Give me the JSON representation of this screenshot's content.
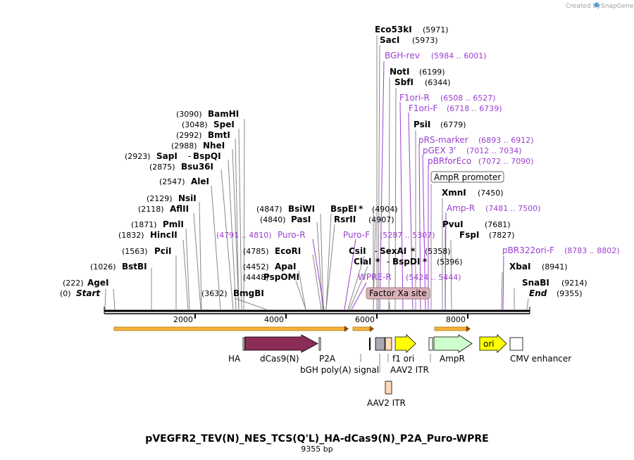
{
  "credit": {
    "created_by": "Created by",
    "brand": "SnapGene"
  },
  "plasmid": {
    "name": "pVEGFR2_TEV(N)_NES_TCS(Q'L)_HA-dCas9(N)_P2A_Puro-WPRE",
    "length": "9355 bp"
  },
  "axis": {
    "ticks": [
      "2000",
      "4000",
      "6000",
      "8000"
    ]
  },
  "enzymes_left": [
    {
      "pos": "(0)",
      "name": "Start",
      "italic": true
    },
    {
      "pos": "(222)",
      "name": "AgeI"
    },
    {
      "pos": "(1026)",
      "name": "BstBI"
    },
    {
      "pos": "(1563)",
      "name": "PciI"
    },
    {
      "pos": "(1832)",
      "name": "HincII"
    },
    {
      "pos": "(1871)",
      "name": "PmlI"
    },
    {
      "pos": "(2118)",
      "name": "AflII"
    },
    {
      "pos": "(2129)",
      "name": "NsiI"
    },
    {
      "pos": "(2547)",
      "name": "AleI"
    },
    {
      "pos": "(2875)",
      "name": "Bsu36I"
    },
    {
      "pos": "(2923)",
      "name": "SapI",
      "extra": "BspQI"
    },
    {
      "pos": "(2988)",
      "name": "NheI"
    },
    {
      "pos": "(2992)",
      "name": "BmtI"
    },
    {
      "pos": "(3048)",
      "name": "SpeI"
    },
    {
      "pos": "(3090)",
      "name": "BamHI"
    }
  ],
  "enzymes_mid": [
    {
      "pos": "(3632)",
      "name": "BmgBI"
    },
    {
      "pos": "(4448)",
      "name": "PspOMI"
    },
    {
      "pos": "(4452)",
      "name": "ApaI"
    },
    {
      "pos": "(4785)",
      "name": "EcoRI"
    },
    {
      "pos": "(4840)",
      "name": "PasI"
    },
    {
      "pos": "(4847)",
      "name": "BsiWI"
    },
    {
      "name": "BspEI",
      "star": "*",
      "pos": "(4904)"
    },
    {
      "name": "RsrII",
      "pos": "(4907)"
    },
    {
      "name": "CsiI",
      "extra": "SexAI",
      "star": "*",
      "pos": "(5358)"
    },
    {
      "name": "ClaI",
      "star": "*",
      "extra": "BspDI",
      "star2": "*",
      "pos": "(5396)"
    }
  ],
  "enzymes_top": [
    {
      "name": "Eco53kI",
      "pos": "(5971)"
    },
    {
      "name": "SacI",
      "pos": "(5973)"
    },
    {
      "name": "NotI",
      "pos": "(6199)"
    },
    {
      "name": "SbfI",
      "pos": "(6344)"
    },
    {
      "name": "PsiI",
      "pos": "(6779)"
    },
    {
      "name": "XmnI",
      "pos": "(7450)"
    },
    {
      "name": "PvuI",
      "pos": "(7681)"
    },
    {
      "name": "FspI",
      "pos": "(7827)"
    },
    {
      "name": "XbaI",
      "pos": "(8941)"
    },
    {
      "name": "SnaBI",
      "pos": "(9214)"
    },
    {
      "name": "End",
      "italic": true,
      "pos": "(9355)"
    }
  ],
  "primers": [
    {
      "name": "BGH-rev",
      "range": "(5984 .. 6001)"
    },
    {
      "name": "F1ori-R",
      "range": "(6508 .. 6527)"
    },
    {
      "name": "F1ori-F",
      "range": "(6718 .. 6739)"
    },
    {
      "name": "pRS-marker",
      "range": "(6893 .. 6912)"
    },
    {
      "name": "pGEX 3'",
      "range": "(7012 .. 7034)"
    },
    {
      "name": "pBRforEco",
      "range": "(7072 .. 7090)"
    },
    {
      "name": "Amp-R",
      "range": "(7481 .. 7500)"
    },
    {
      "name": "pBR322ori-F",
      "range": "(8783 .. 8802)"
    },
    {
      "name": "Puro-R",
      "range": "(4791 .. 4810)"
    },
    {
      "name": "Puro-F",
      "range": "(5287 .. 5307)"
    },
    {
      "name": "WPRE-R",
      "range": "(5424 .. 5444)"
    }
  ],
  "boxed_labels": {
    "ampr_promoter": "AmpR promoter",
    "factor_xa": "Factor Xa site"
  },
  "features": {
    "ha": "HA",
    "dcas9": "dCas9(N)",
    "p2a": "P2A",
    "bgh": "bGH poly(A) signal",
    "f1ori": "f1 ori",
    "aav2_itr_1": "AAV2 ITR",
    "ampr": "AmpR",
    "ori": "ori",
    "cmv": "CMV enhancer",
    "aav2_itr_2": "AAV2 ITR"
  },
  "colors": {
    "primer": "#9b3ed1",
    "dcas9": "#8b2c57",
    "yellow": "#ffff00",
    "ampr": "#ccffcc",
    "itr": "#ffd9b3",
    "grey": "#a9a9b3",
    "factor_xa": "#d9b0b8",
    "orf_arrow": "#f5b13a"
  }
}
